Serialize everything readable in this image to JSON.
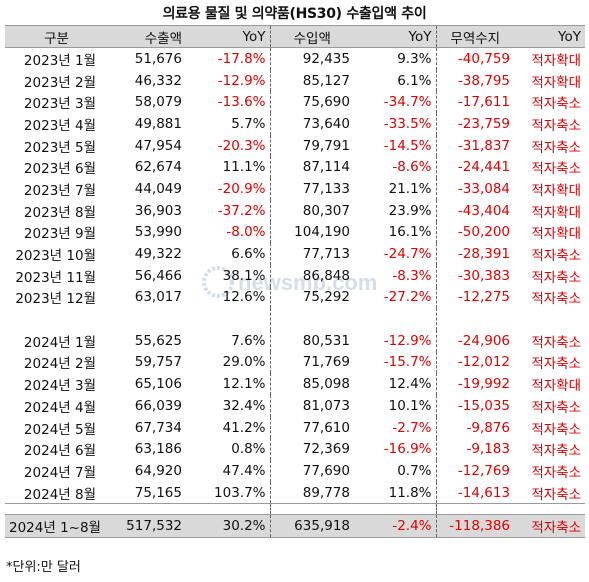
{
  "title": "의료용 물질 및 의약품(HS30) 수출입액 추이",
  "headers": [
    "구분",
    "수출액",
    "YoY",
    "수입액",
    "YoY",
    "무역수지",
    "YoY"
  ],
  "rows_2023": [
    {
      "period": "2023년 1월",
      "exp": "51,676",
      "exp_yoy": "-17.8%",
      "imp": "92,435",
      "imp_yoy": "9.3%",
      "bal": "-40,759",
      "note": "적자확대"
    },
    {
      "period": "2023년 2월",
      "exp": "46,332",
      "exp_yoy": "-12.9%",
      "imp": "85,127",
      "imp_yoy": "6.1%",
      "bal": "-38,795",
      "note": "적자확대"
    },
    {
      "period": "2023년 3월",
      "exp": "58,079",
      "exp_yoy": "-13.6%",
      "imp": "75,690",
      "imp_yoy": "-34.7%",
      "bal": "-17,611",
      "note": "적자축소"
    },
    {
      "period": "2023년 4월",
      "exp": "49,881",
      "exp_yoy": "5.7%",
      "imp": "73,640",
      "imp_yoy": "-33.5%",
      "bal": "-23,759",
      "note": "적자축소"
    },
    {
      "period": "2023년 5월",
      "exp": "47,954",
      "exp_yoy": "-20.3%",
      "imp": "79,791",
      "imp_yoy": "-14.5%",
      "bal": "-31,837",
      "note": "적자축소"
    },
    {
      "period": "2023년 6월",
      "exp": "62,674",
      "exp_yoy": "11.1%",
      "imp": "87,114",
      "imp_yoy": "-8.6%",
      "bal": "-24,441",
      "note": "적자축소"
    },
    {
      "period": "2023년 7월",
      "exp": "44,049",
      "exp_yoy": "-20.9%",
      "imp": "77,133",
      "imp_yoy": "21.1%",
      "bal": "-33,084",
      "note": "적자확대"
    },
    {
      "period": "2023년 8월",
      "exp": "36,903",
      "exp_yoy": "-37.2%",
      "imp": "80,307",
      "imp_yoy": "23.9%",
      "bal": "-43,404",
      "note": "적자확대"
    },
    {
      "period": "2023년 9월",
      "exp": "53,990",
      "exp_yoy": "-8.0%",
      "imp": "104,190",
      "imp_yoy": "16.1%",
      "bal": "-50,200",
      "note": "적자확대"
    },
    {
      "period": "2023년 10월",
      "exp": "49,322",
      "exp_yoy": "6.6%",
      "imp": "77,713",
      "imp_yoy": "-24.7%",
      "bal": "-28,391",
      "note": "적자축소"
    },
    {
      "period": "2023년 11월",
      "exp": "56,466",
      "exp_yoy": "38.1%",
      "imp": "86,848",
      "imp_yoy": "-8.3%",
      "bal": "-30,383",
      "note": "적자축소"
    },
    {
      "period": "2023년 12월",
      "exp": "63,017",
      "exp_yoy": "12.6%",
      "imp": "75,292",
      "imp_yoy": "-27.2%",
      "bal": "-12,275",
      "note": "적자축소"
    }
  ],
  "rows_2024": [
    {
      "period": "2024년 1월",
      "exp": "55,625",
      "exp_yoy": "7.6%",
      "imp": "80,531",
      "imp_yoy": "-12.9%",
      "bal": "-24,906",
      "note": "적자축소"
    },
    {
      "period": "2024년 2월",
      "exp": "59,757",
      "exp_yoy": "29.0%",
      "imp": "71,769",
      "imp_yoy": "-15.7%",
      "bal": "-12,012",
      "note": "적자축소"
    },
    {
      "period": "2024년 3월",
      "exp": "65,106",
      "exp_yoy": "12.1%",
      "imp": "85,098",
      "imp_yoy": "12.4%",
      "bal": "-19,992",
      "note": "적자확대"
    },
    {
      "period": "2024년 4월",
      "exp": "66,039",
      "exp_yoy": "32.4%",
      "imp": "81,073",
      "imp_yoy": "10.1%",
      "bal": "-15,035",
      "note": "적자축소"
    },
    {
      "period": "2024년 5월",
      "exp": "67,734",
      "exp_yoy": "41.2%",
      "imp": "77,610",
      "imp_yoy": "-2.7%",
      "bal": "-9,876",
      "note": "적자축소"
    },
    {
      "period": "2024년 6월",
      "exp": "63,186",
      "exp_yoy": "0.8%",
      "imp": "72,369",
      "imp_yoy": "-16.9%",
      "bal": "-9,183",
      "note": "적자축소"
    },
    {
      "period": "2024년 7월",
      "exp": "64,920",
      "exp_yoy": "47.4%",
      "imp": "77,690",
      "imp_yoy": "0.7%",
      "bal": "-12,769",
      "note": "적자축소"
    },
    {
      "period": "2024년 8월",
      "exp": "75,165",
      "exp_yoy": "103.7%",
      "imp": "89,778",
      "imp_yoy": "11.8%",
      "bal": "-14,613",
      "note": "적자축소"
    }
  ],
  "total": {
    "period": "2024년 1~8월",
    "exp": "517,532",
    "exp_yoy": "30.2%",
    "imp": "635,918",
    "imp_yoy": "-2.4%",
    "bal": "-118,386",
    "note": "적자축소"
  },
  "footnote": "*단위:만 달러",
  "watermark": "newsmp.com",
  "colors": {
    "negative": "#e00000",
    "header_bg": "#d9d9d9"
  }
}
